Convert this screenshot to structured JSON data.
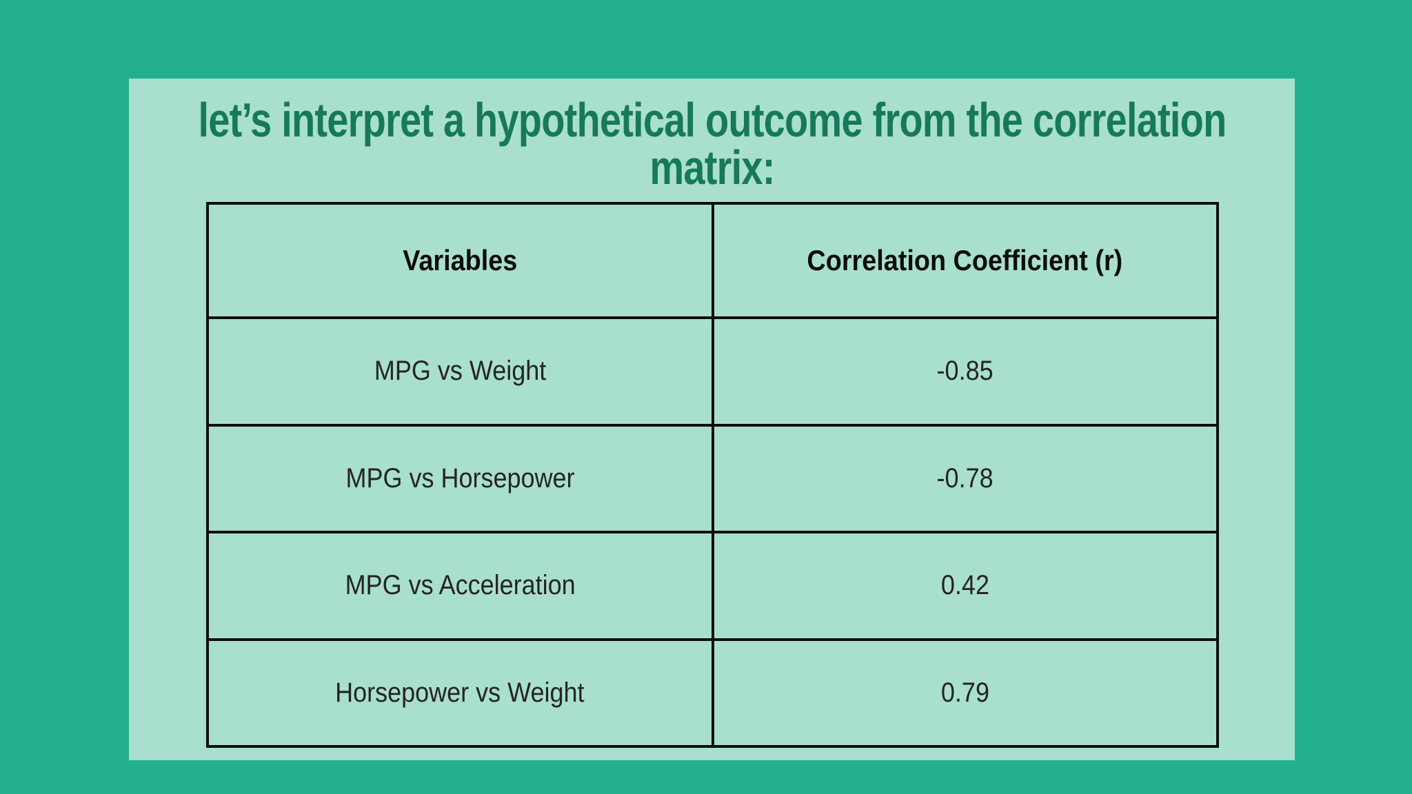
{
  "colors": {
    "background": "#23b18d",
    "panel": "#a9dfce",
    "title_text": "#17795b",
    "table_border": "#0e0e0e",
    "header_text": "#0c0c0c",
    "cell_text": "#242424"
  },
  "title": {
    "lines": [
      "let’s interpret a hypothetical outcome from the correlation",
      "matrix:"
    ],
    "full_text": "let’s interpret a hypothetical outcome from the correlation matrix:"
  },
  "table": {
    "columns": [
      "Variables",
      "Correlation Coefficient (r)"
    ],
    "rows": [
      {
        "variables": "MPG vs Weight",
        "r": "-0.85"
      },
      {
        "variables": "MPG vs Horsepower",
        "r": "-0.78"
      },
      {
        "variables": "MPG vs Acceleration",
        "r": "0.42"
      },
      {
        "variables": "Horsepower vs Weight",
        "r": "0.79"
      }
    ]
  },
  "chart_data": {
    "type": "table",
    "title": "let’s interpret a hypothetical outcome from the correlation matrix:",
    "columns": [
      "Variables",
      "Correlation Coefficient (r)"
    ],
    "rows": [
      [
        "MPG vs Weight",
        -0.85
      ],
      [
        "MPG vs Horsepower",
        -0.78
      ],
      [
        "MPG vs Acceleration",
        0.42
      ],
      [
        "Horsepower vs Weight",
        0.79
      ]
    ],
    "layout_hints": {
      "columns_split": "50/50",
      "grid": "all black borders",
      "cell_alignment": "center"
    }
  }
}
